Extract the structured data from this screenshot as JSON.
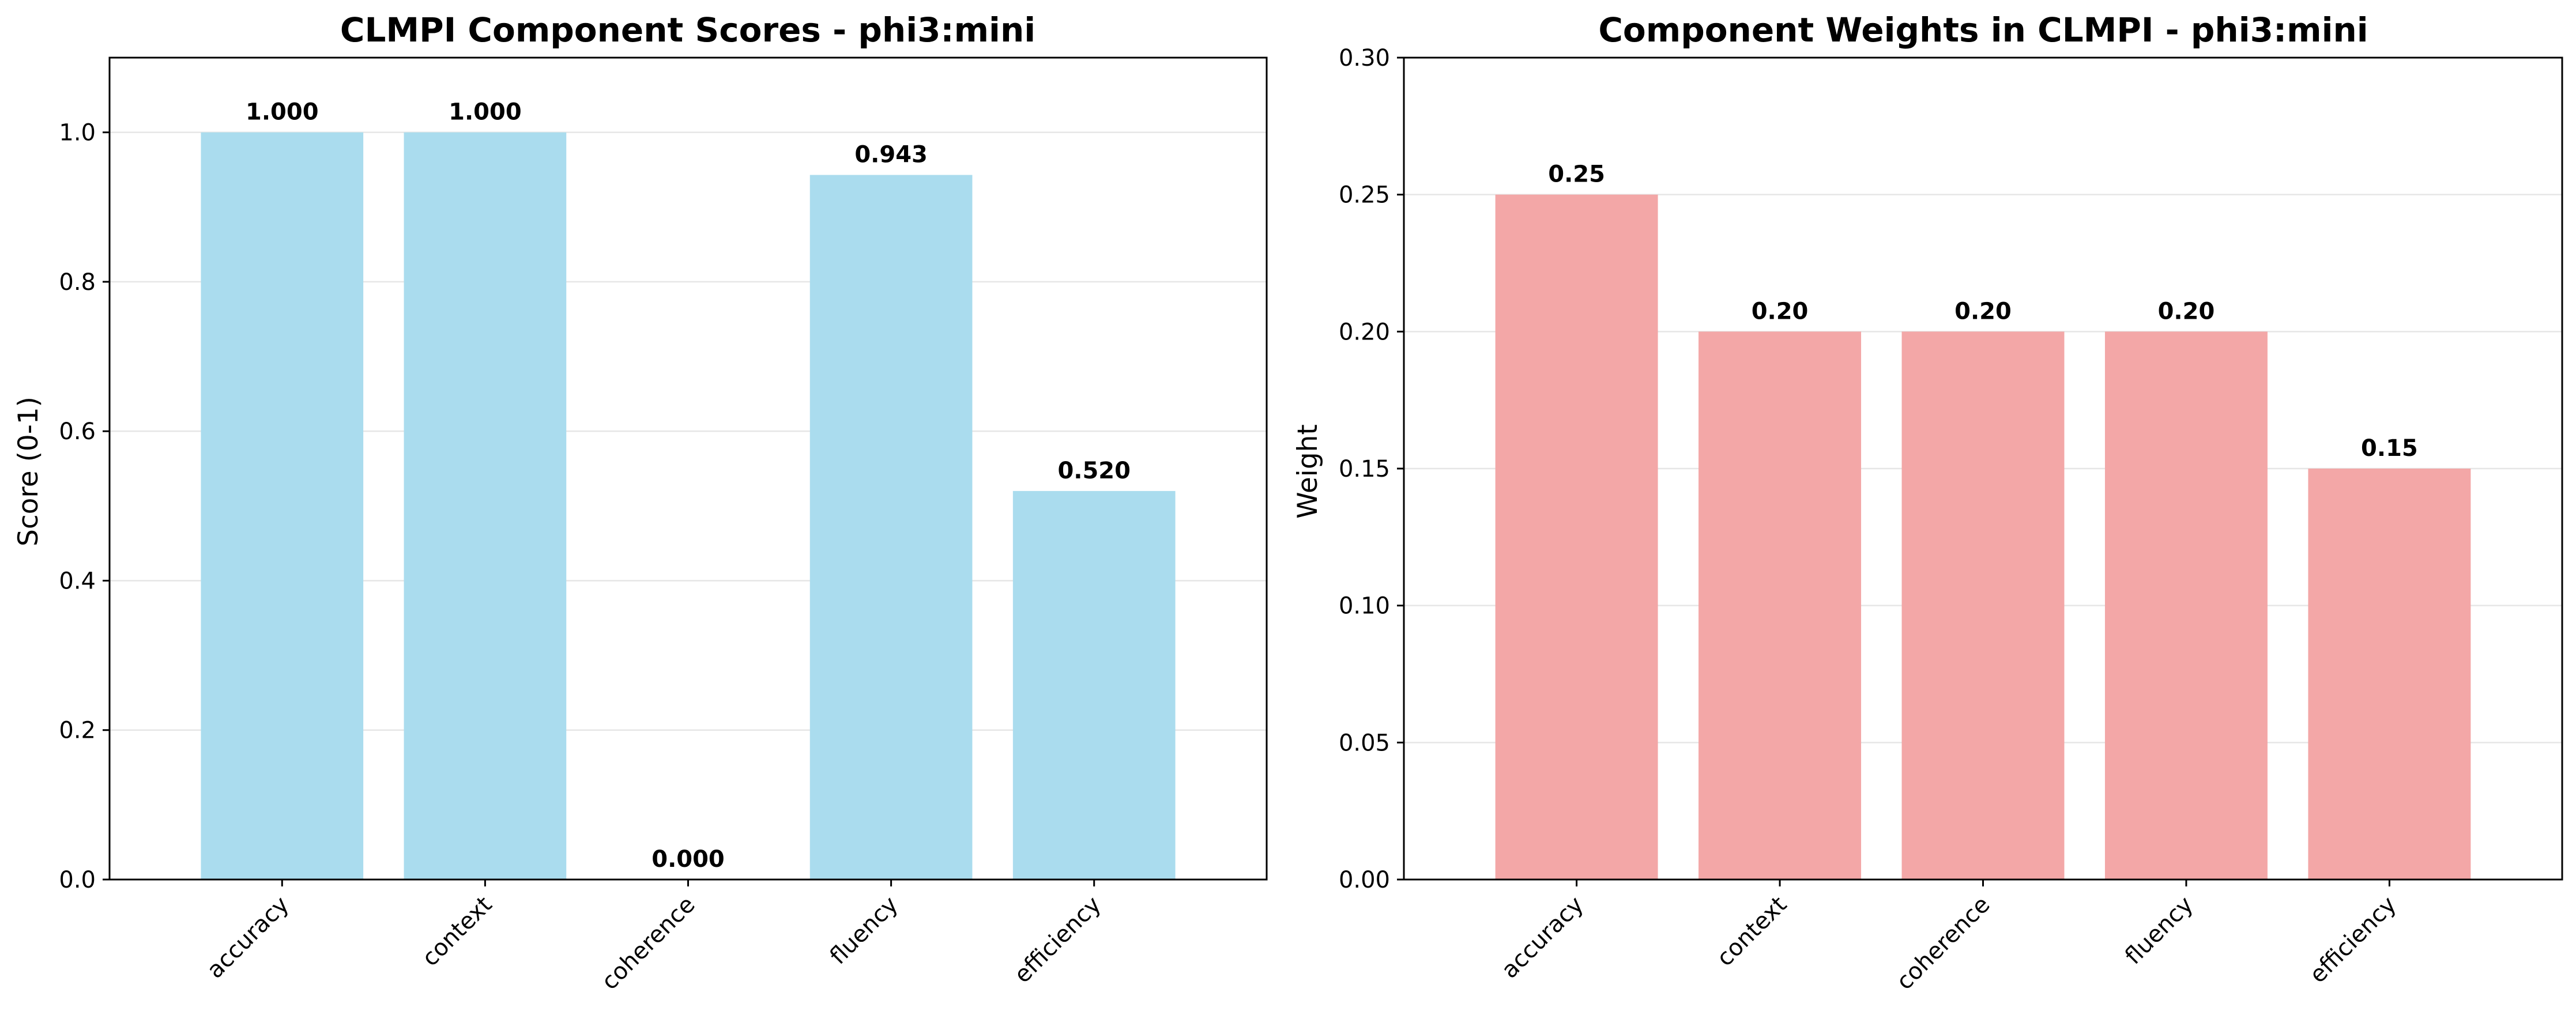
{
  "chart_data": [
    {
      "type": "bar",
      "title": "CLMPI Component Scores - phi3:mini",
      "xlabel": "",
      "ylabel": "Score (0-1)",
      "categories": [
        "accuracy",
        "context",
        "coherence",
        "fluency",
        "efficiency"
      ],
      "values": [
        1.0,
        1.0,
        0.0,
        0.943,
        0.52
      ],
      "value_labels": [
        "1.000",
        "1.000",
        "0.000",
        "0.943",
        "0.520"
      ],
      "ylim": [
        0,
        1.1
      ],
      "yticks": [
        0.0,
        0.2,
        0.4,
        0.6,
        0.8,
        1.0
      ],
      "ytick_labels": [
        "0.0",
        "0.2",
        "0.4",
        "0.6",
        "0.8",
        "1.0"
      ],
      "color": "#aadcee",
      "grid": "y"
    },
    {
      "type": "bar",
      "title": "Component Weights in CLMPI - phi3:mini",
      "xlabel": "",
      "ylabel": "Weight",
      "categories": [
        "accuracy",
        "context",
        "coherence",
        "fluency",
        "efficiency"
      ],
      "values": [
        0.25,
        0.2,
        0.2,
        0.2,
        0.15
      ],
      "value_labels": [
        "0.25",
        "0.20",
        "0.20",
        "0.20",
        "0.15"
      ],
      "ylim": [
        0,
        0.3
      ],
      "yticks": [
        0.0,
        0.05,
        0.1,
        0.15,
        0.2,
        0.25,
        0.3
      ],
      "ytick_labels": [
        "0.00",
        "0.05",
        "0.10",
        "0.15",
        "0.20",
        "0.25",
        "0.30"
      ],
      "color": "#f3a7a7",
      "grid": "y"
    }
  ]
}
